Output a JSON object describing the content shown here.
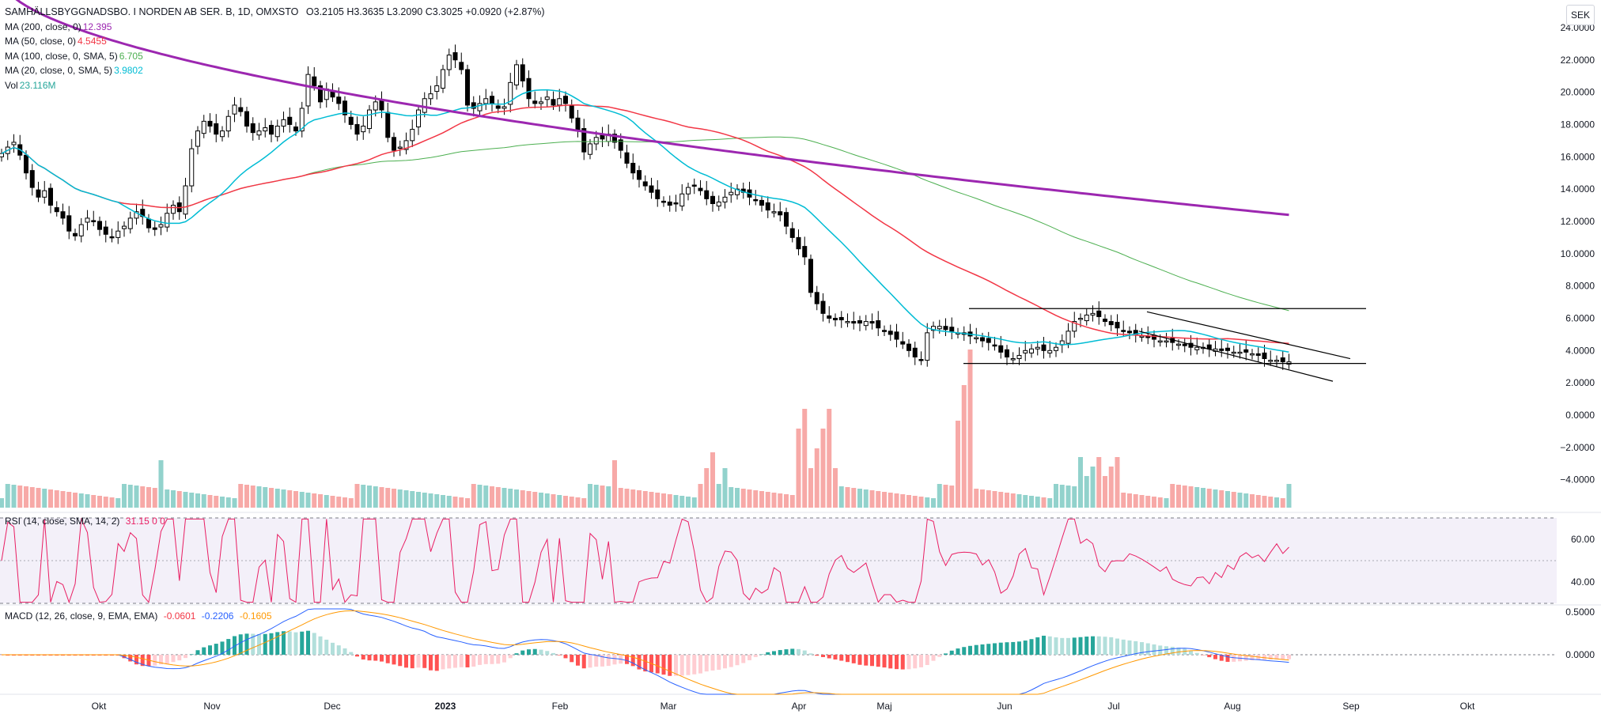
{
  "header": {
    "symbol": "SAMHÄLLSBYGGNADSBO. I NORDEN AB SER. B, 1D, OMXSTO",
    "ohlc": "O3.2105  H3.3635  L3.2090  C3.3025  +0.0920 (+2.87%)",
    "currency": "SEK"
  },
  "legend": [
    {
      "label": "MA (200, close, 0)",
      "value": "12.395",
      "color": "#9c27b0"
    },
    {
      "label": "MA (50, close, 0)",
      "value": "4.5455",
      "color": "#f23645"
    },
    {
      "label": "MA (100, close, 0, SMA, 5)",
      "value": "6.705",
      "color": "#4caf50"
    },
    {
      "label": "MA (20, close, 0, SMA, 5)",
      "value": "3.9802",
      "color": "#00bcd4"
    },
    {
      "label": "Vol",
      "value": "23.116M",
      "color": "#26a69a"
    }
  ],
  "rsi_label": {
    "label": "RSI (14, close, SMA, 14, 2)",
    "values": "31.15  0  0",
    "color": "#e91e63"
  },
  "macd_label": {
    "label": "MACD (12, 26, close, 9, EMA, EMA)",
    "v1": "-0.0601",
    "v2": "-0.2206",
    "v3": "-0.1605"
  },
  "chart_data": {
    "type": "candlestick",
    "price_axis": {
      "ticks": [
        "24.0000",
        "22.0000",
        "20.0000",
        "18.0000",
        "16.0000",
        "14.0000",
        "12.0000",
        "10.0000",
        "8.0000",
        "6.0000",
        "4.0000",
        "2.0000",
        "0.0000",
        "−2.0000",
        "−4.0000"
      ],
      "range": [
        -4.0,
        24.0
      ]
    },
    "rsi_axis": {
      "ticks": [
        "60.00",
        "40.00"
      ],
      "bands": [
        30,
        70
      ],
      "middle": 50
    },
    "macd_axis": {
      "ticks": [
        "0.5000",
        "0.0000"
      ]
    },
    "x_axis": {
      "labels": [
        "Okt",
        "Nov",
        "Dec",
        "2023",
        "Feb",
        "Mar",
        "Apr",
        "Maj",
        "Jun",
        "Jul",
        "Aug",
        "Sep",
        "Okt"
      ]
    },
    "closes": [
      16.2,
      16.6,
      16.9,
      16.1,
      15.0,
      14.1,
      13.5,
      13.9,
      13.0,
      12.6,
      12.2,
      11.4,
      11.1,
      11.8,
      12.2,
      12.0,
      11.5,
      11.2,
      11.0,
      11.4,
      11.7,
      12.2,
      12.6,
      12.3,
      11.6,
      11.5,
      11.8,
      12.5,
      13.0,
      12.6,
      14.2,
      16.5,
      17.6,
      18.2,
      17.9,
      17.4,
      17.6,
      18.5,
      19.2,
      18.8,
      17.9,
      17.5,
      17.6,
      17.8,
      17.4,
      17.9,
      18.3,
      18.0,
      17.6,
      19.0,
      21.1,
      20.4,
      19.4,
      20.2,
      19.7,
      19.3,
      18.6,
      18.0,
      17.4,
      17.9,
      18.9,
      19.4,
      18.9,
      17.2,
      16.4,
      16.6,
      17.0,
      17.7,
      18.9,
      19.6,
      19.9,
      20.4,
      21.4,
      22.3,
      22.0,
      21.4,
      19.2,
      19.0,
      19.3,
      19.6,
      19.3,
      19.0,
      19.1,
      20.6,
      21.7,
      20.7,
      19.6,
      19.3,
      19.4,
      19.7,
      19.2,
      19.6,
      19.3,
      18.4,
      17.6,
      16.3,
      16.8,
      17.2,
      17.1,
      17.4,
      16.9,
      16.4,
      15.6,
      15.0,
      14.6,
      14.2,
      13.8,
      13.4,
      13.2,
      13.0,
      13.1,
      13.7,
      14.1,
      14.2,
      13.9,
      13.4,
      13.1,
      13.2,
      13.5,
      13.8,
      14.0,
      13.8,
      13.5,
      13.3,
      13.0,
      12.7,
      12.6,
      12.4,
      11.7,
      11.0,
      10.3,
      9.8,
      7.6,
      6.9,
      6.3,
      6.0,
      5.9,
      5.9,
      5.8,
      5.7,
      5.7,
      5.8,
      5.7,
      5.4,
      5.2,
      5.0,
      4.7,
      4.4,
      4.0,
      3.6,
      3.4,
      5.1,
      5.5,
      5.5,
      5.3,
      5.2,
      5.1,
      5.0,
      4.9,
      4.8,
      4.6,
      4.5,
      4.3,
      3.9,
      3.6,
      3.5,
      3.7,
      4.0,
      4.1,
      4.2,
      4.0,
      4.0,
      4.2,
      4.6,
      5.2,
      5.8,
      6.0,
      6.2,
      6.3,
      6.1,
      5.8,
      5.6,
      5.4,
      5.2,
      5.1,
      5.0,
      4.9,
      4.8,
      4.7,
      4.6,
      4.6,
      4.5,
      4.4,
      4.3,
      4.2,
      4.2,
      4.2,
      4.1,
      4.1,
      4.0,
      4.0,
      3.9,
      3.9,
      3.9,
      3.8,
      3.7,
      3.5,
      3.4,
      3.4,
      3.3,
      3.3
    ],
    "ma_overlays": [
      "MA 200",
      "MA 50",
      "MA 100",
      "MA 20"
    ],
    "trendlines": "horizontal support/resistance channel and descending channel"
  }
}
